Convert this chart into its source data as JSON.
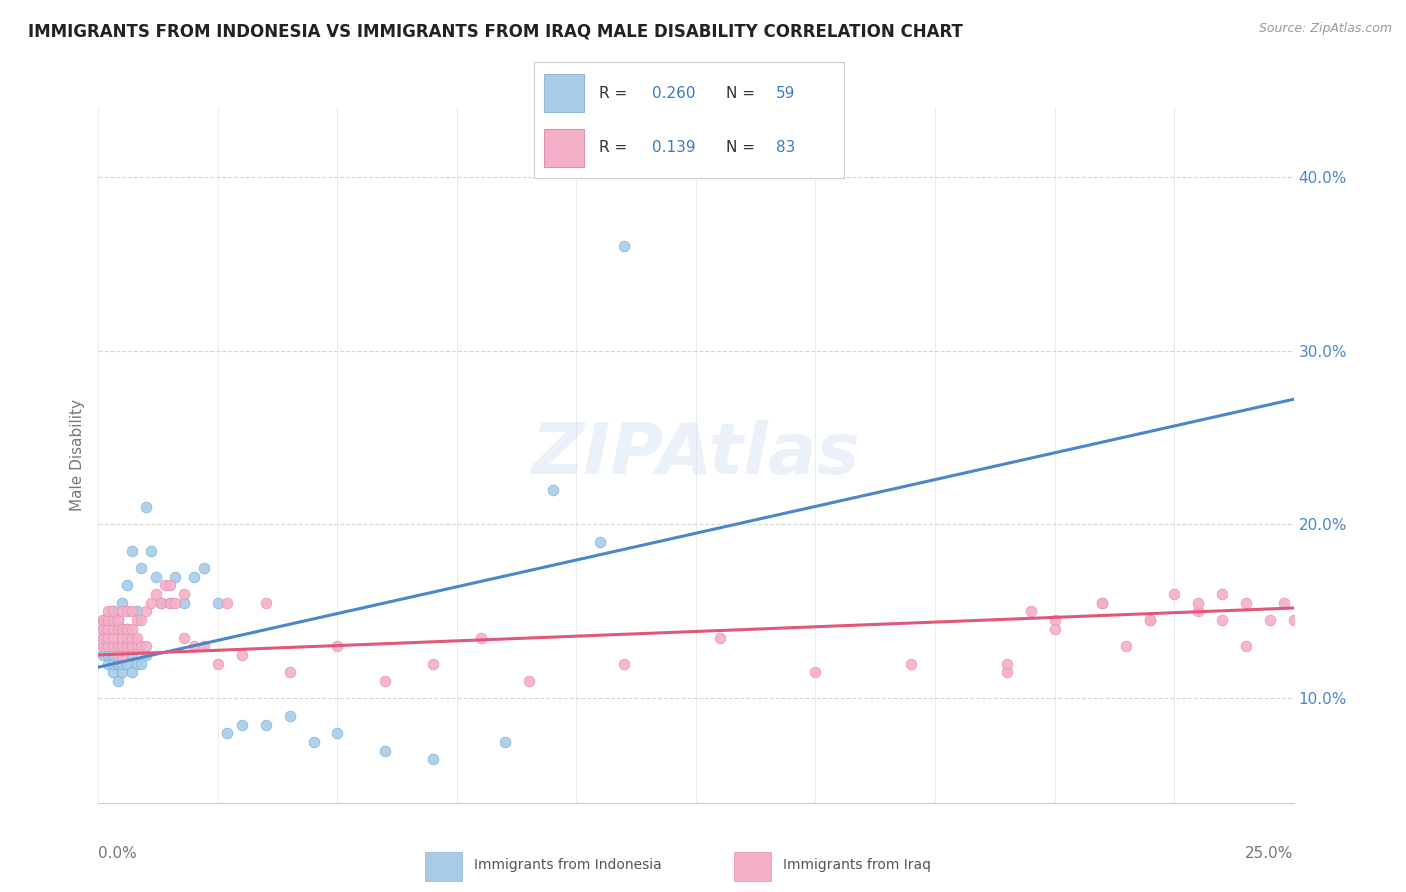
{
  "title": "IMMIGRANTS FROM INDONESIA VS IMMIGRANTS FROM IRAQ MALE DISABILITY CORRELATION CHART",
  "source": "Source: ZipAtlas.com",
  "ylabel": "Male Disability",
  "y_tick_labels": [
    "10.0%",
    "20.0%",
    "30.0%",
    "40.0%"
  ],
  "y_tick_values": [
    0.1,
    0.2,
    0.3,
    0.4
  ],
  "x_range": [
    0.0,
    0.25
  ],
  "y_range": [
    0.04,
    0.44
  ],
  "watermark": "ZIPAtlas",
  "series": [
    {
      "name": "Immigrants from Indonesia",
      "R": "0.260",
      "N": "59",
      "dot_color": "#a8cce8",
      "dot_edge": "#7aaed4",
      "line_color": "#4a86c8",
      "x": [
        0.001,
        0.001,
        0.001,
        0.001,
        0.001,
        0.002,
        0.002,
        0.002,
        0.002,
        0.002,
        0.003,
        0.003,
        0.003,
        0.003,
        0.003,
        0.003,
        0.004,
        0.004,
        0.004,
        0.004,
        0.005,
        0.005,
        0.005,
        0.005,
        0.005,
        0.006,
        0.006,
        0.006,
        0.006,
        0.007,
        0.007,
        0.007,
        0.008,
        0.008,
        0.009,
        0.009,
        0.01,
        0.01,
        0.011,
        0.012,
        0.013,
        0.015,
        0.016,
        0.018,
        0.02,
        0.022,
        0.025,
        0.027,
        0.03,
        0.035,
        0.04,
        0.045,
        0.05,
        0.06,
        0.07,
        0.085,
        0.095,
        0.105,
        0.11
      ],
      "y": [
        0.125,
        0.13,
        0.135,
        0.14,
        0.145,
        0.12,
        0.125,
        0.13,
        0.135,
        0.14,
        0.115,
        0.12,
        0.125,
        0.13,
        0.14,
        0.15,
        0.11,
        0.12,
        0.13,
        0.145,
        0.115,
        0.12,
        0.13,
        0.14,
        0.155,
        0.12,
        0.13,
        0.14,
        0.165,
        0.115,
        0.125,
        0.185,
        0.12,
        0.15,
        0.12,
        0.175,
        0.125,
        0.21,
        0.185,
        0.17,
        0.155,
        0.155,
        0.17,
        0.155,
        0.17,
        0.175,
        0.155,
        0.08,
        0.085,
        0.085,
        0.09,
        0.075,
        0.08,
        0.07,
        0.065,
        0.075,
        0.22,
        0.19,
        0.36
      ],
      "trend_x": [
        0.0,
        0.25
      ],
      "trend_y": [
        0.118,
        0.272
      ]
    },
    {
      "name": "Immigrants from Iraq",
      "R": "0.139",
      "N": "83",
      "dot_color": "#f4b0c8",
      "dot_edge": "#e890b0",
      "line_color": "#e05878",
      "x": [
        0.001,
        0.001,
        0.001,
        0.001,
        0.002,
        0.002,
        0.002,
        0.002,
        0.002,
        0.003,
        0.003,
        0.003,
        0.003,
        0.003,
        0.004,
        0.004,
        0.004,
        0.004,
        0.005,
        0.005,
        0.005,
        0.005,
        0.005,
        0.006,
        0.006,
        0.006,
        0.006,
        0.007,
        0.007,
        0.007,
        0.007,
        0.008,
        0.008,
        0.008,
        0.009,
        0.009,
        0.01,
        0.01,
        0.011,
        0.012,
        0.013,
        0.014,
        0.015,
        0.015,
        0.016,
        0.018,
        0.018,
        0.02,
        0.022,
        0.025,
        0.027,
        0.03,
        0.035,
        0.04,
        0.05,
        0.06,
        0.07,
        0.08,
        0.09,
        0.11,
        0.13,
        0.15,
        0.17,
        0.19,
        0.2,
        0.21,
        0.215,
        0.22,
        0.225,
        0.23,
        0.235,
        0.24,
        0.245,
        0.248,
        0.25,
        0.24,
        0.235,
        0.23,
        0.22,
        0.21,
        0.2,
        0.195,
        0.19
      ],
      "y": [
        0.13,
        0.135,
        0.14,
        0.145,
        0.13,
        0.135,
        0.14,
        0.145,
        0.15,
        0.13,
        0.135,
        0.14,
        0.145,
        0.15,
        0.125,
        0.13,
        0.14,
        0.145,
        0.125,
        0.13,
        0.135,
        0.14,
        0.15,
        0.13,
        0.135,
        0.14,
        0.15,
        0.13,
        0.135,
        0.14,
        0.15,
        0.13,
        0.135,
        0.145,
        0.13,
        0.145,
        0.13,
        0.15,
        0.155,
        0.16,
        0.155,
        0.165,
        0.155,
        0.165,
        0.155,
        0.16,
        0.135,
        0.13,
        0.13,
        0.12,
        0.155,
        0.125,
        0.155,
        0.115,
        0.13,
        0.11,
        0.12,
        0.135,
        0.11,
        0.12,
        0.135,
        0.115,
        0.12,
        0.115,
        0.145,
        0.155,
        0.13,
        0.145,
        0.16,
        0.15,
        0.145,
        0.155,
        0.145,
        0.155,
        0.145,
        0.13,
        0.16,
        0.155,
        0.145,
        0.155,
        0.14,
        0.15,
        0.12
      ],
      "trend_x": [
        0.0,
        0.25
      ],
      "trend_y": [
        0.125,
        0.152
      ]
    }
  ],
  "legend_colors": [
    "#a8cce8",
    "#f4b0c8"
  ],
  "legend_text_color": "#3a7cc0",
  "background_color": "#ffffff",
  "grid_color": "#dddddd",
  "title_color": "#222222",
  "axis_label_color": "#777777",
  "tick_label_color_right": "#4a86c8"
}
